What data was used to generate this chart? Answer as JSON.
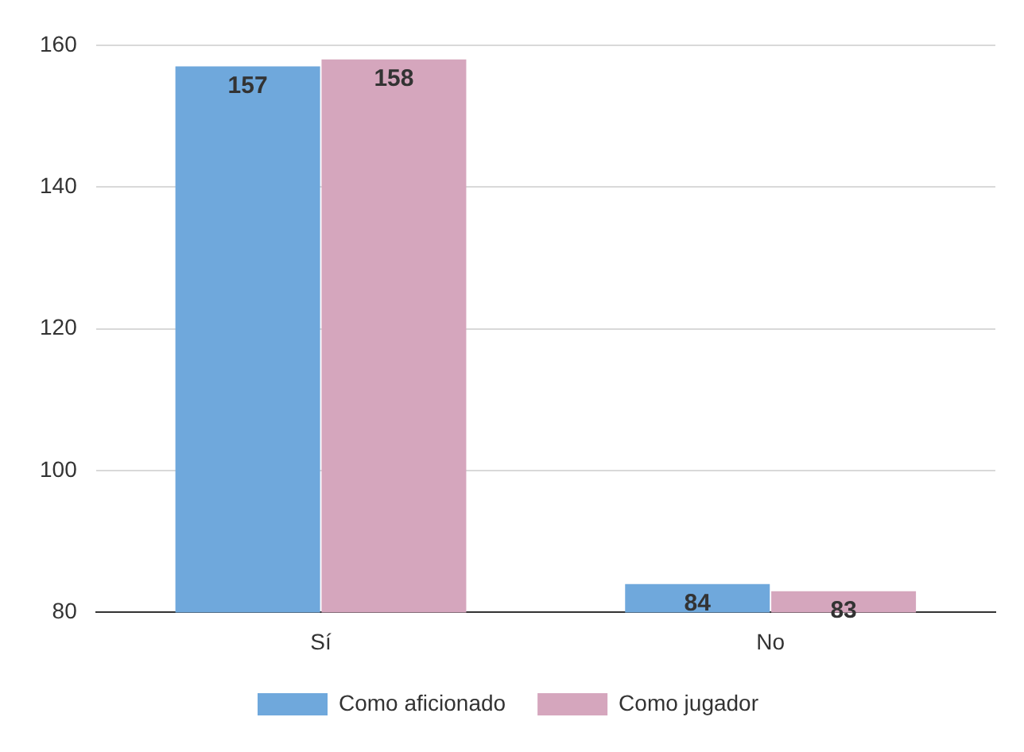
{
  "chart_data": {
    "type": "bar",
    "categories": [
      "Sí",
      "No"
    ],
    "series": [
      {
        "name": "Como aficionado",
        "color": "#6fa8dc",
        "values": [
          157,
          84
        ]
      },
      {
        "name": "Como jugador",
        "color": "#d5a6bd",
        "values": [
          158,
          83
        ]
      }
    ],
    "ylim": [
      80,
      160
    ],
    "yticks": [
      80,
      100,
      120,
      140,
      160
    ],
    "grid": "y",
    "legend": "bottom",
    "data_labels": true
  }
}
